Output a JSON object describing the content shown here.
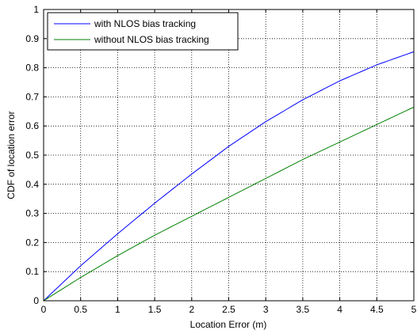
{
  "chart_data": {
    "type": "line",
    "title": "",
    "xlabel": "Location Error (m)",
    "ylabel": "CDF of location error",
    "xlim": [
      0,
      5
    ],
    "ylim": [
      0,
      1
    ],
    "xticks": [
      0,
      0.5,
      1,
      1.5,
      2,
      2.5,
      3,
      3.5,
      4,
      4.5,
      5
    ],
    "yticks": [
      0,
      0.1,
      0.2,
      0.3,
      0.4,
      0.5,
      0.6,
      0.7,
      0.8,
      0.9,
      1
    ],
    "xtick_labels": [
      "0",
      "0.5",
      "1",
      "1.5",
      "2",
      "2.5",
      "3",
      "3.5",
      "4",
      "4.5",
      "5"
    ],
    "ytick_labels": [
      "0",
      "0.1",
      "0.2",
      "0.3",
      "0.4",
      "0.5",
      "0.6",
      "0.7",
      "0.8",
      "0.9",
      "1"
    ],
    "grid": true,
    "legend_position": "top-left",
    "x": [
      0,
      0.5,
      1,
      1.5,
      2,
      2.5,
      3,
      3.5,
      4,
      4.5,
      5
    ],
    "series": [
      {
        "name": "with NLOS bias tracking",
        "color": "#0000ff",
        "values": [
          0,
          0.12,
          0.23,
          0.335,
          0.435,
          0.53,
          0.615,
          0.69,
          0.755,
          0.81,
          0.855
        ]
      },
      {
        "name": "without NLOS bias tracking",
        "color": "#008000",
        "values": [
          0,
          0.08,
          0.155,
          0.225,
          0.29,
          0.355,
          0.42,
          0.485,
          0.545,
          0.605,
          0.665
        ]
      }
    ]
  }
}
